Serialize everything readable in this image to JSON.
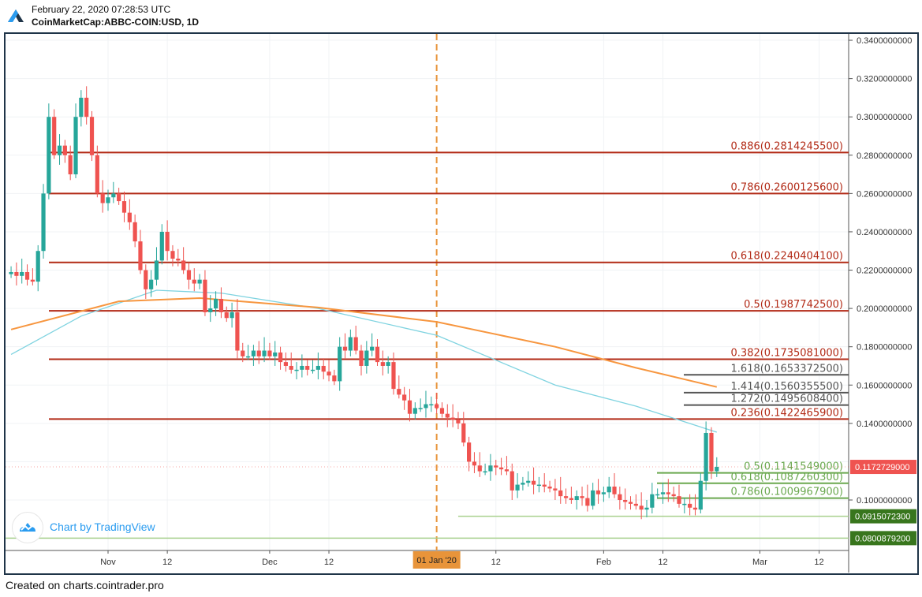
{
  "header": {
    "datetime": "February 22, 2020 07:28:53 UTC",
    "symbol": "CoinMarketCap:ABBC-COIN:USD, 1D"
  },
  "footer": {
    "credit": "Created on charts.cointrader.pro"
  },
  "watermark": {
    "label": "Chart by TradingView"
  },
  "colors": {
    "up": "#26a69a",
    "down": "#ef5350",
    "fib_red": "#b22a16",
    "fib_grey": "#555555",
    "fib_green": "#6aa84f",
    "ma_fast": "#7fd3e0",
    "ma_slow": "#f7963f",
    "event_line": "#e8943a",
    "support_dark_green": "#38761d",
    "frame": "#1f3448"
  },
  "chart_data": {
    "type": "candlestick",
    "interval": "1D",
    "first_candle_date": "2019-10-14",
    "close": [
      0.219,
      0.217,
      0.219,
      0.215,
      0.214,
      0.23,
      0.26,
      0.3,
      0.28,
      0.285,
      0.28,
      0.27,
      0.3,
      0.31,
      0.3,
      0.28,
      0.26,
      0.255,
      0.258,
      0.26,
      0.256,
      0.25,
      0.245,
      0.235,
      0.22,
      0.21,
      0.215,
      0.225,
      0.24,
      0.23,
      0.226,
      0.225,
      0.22,
      0.215,
      0.213,
      0.215,
      0.198,
      0.2,
      0.205,
      0.198,
      0.195,
      0.198,
      0.178,
      0.175,
      0.175,
      0.178,
      0.175,
      0.178,
      0.175,
      0.177,
      0.172,
      0.17,
      0.168,
      0.168,
      0.17,
      0.168,
      0.168,
      0.17,
      0.167,
      0.165,
      0.162,
      0.18,
      0.178,
      0.185,
      0.178,
      0.17,
      0.178,
      0.18,
      0.172,
      0.17,
      0.172,
      0.158,
      0.155,
      0.152,
      0.145,
      0.148,
      0.148,
      0.15,
      0.15,
      0.148,
      0.145,
      0.143,
      0.142,
      0.14,
      0.13,
      0.12,
      0.118,
      0.115,
      0.115,
      0.118,
      0.117,
      0.116,
      0.115,
      0.105,
      0.108,
      0.109,
      0.11,
      0.108,
      0.108,
      0.107,
      0.106,
      0.105,
      0.102,
      0.101,
      0.1,
      0.102,
      0.101,
      0.097,
      0.105,
      0.103,
      0.104,
      0.107,
      0.103,
      0.1,
      0.099,
      0.098,
      0.097,
      0.095,
      0.096,
      0.103,
      0.103,
      0.104,
      0.103,
      0.102,
      0.098,
      0.098,
      0.096,
      0.095,
      0.11,
      0.135,
      0.115,
      0.1173
    ],
    "ma_fast": [
      [
        0,
        0.176
      ],
      [
        13,
        0.196
      ],
      [
        27,
        0.2095
      ],
      [
        39,
        0.208
      ],
      [
        57,
        0.2
      ],
      [
        79,
        0.186
      ],
      [
        101,
        0.16
      ],
      [
        116,
        0.149
      ],
      [
        131,
        0.1354
      ]
    ],
    "ma_slow": [
      [
        0,
        0.189
      ],
      [
        20,
        0.2037
      ],
      [
        35,
        0.2054
      ],
      [
        57,
        0.2005
      ],
      [
        79,
        0.193
      ],
      [
        101,
        0.18
      ],
      [
        116,
        0.169
      ],
      [
        131,
        0.159
      ]
    ],
    "y_axis": {
      "min": 0.075,
      "max": 0.345,
      "ticks": [
        "0.3400000000",
        "0.3200000000",
        "0.3000000000",
        "0.2800000000",
        "0.2600000000",
        "0.2400000000",
        "0.2200000000",
        "0.2000000000",
        "0.1800000000",
        "0.1600000000",
        "0.1400000000",
        "0.1000000000"
      ]
    },
    "x_axis": {
      "ticks": [
        {
          "label": "Nov",
          "day": 18
        },
        {
          "label": "12",
          "day": 29
        },
        {
          "label": "Dec",
          "day": 48
        },
        {
          "label": "12",
          "day": 59
        },
        {
          "label": "12",
          "day": 90
        },
        {
          "label": "Feb",
          "day": 110
        },
        {
          "label": "12",
          "day": 121
        },
        {
          "label": "Mar",
          "day": 139
        },
        {
          "label": "12",
          "day": 150
        }
      ]
    },
    "event_marker": {
      "label": "01 Jan '20",
      "day": 79
    },
    "last_price": {
      "value": 0.1172729,
      "label": "0.1172729000"
    },
    "fib_retracement_red": [
      {
        "ratio": "0.886",
        "price": 0.28142455,
        "label": "0.886(0.2814245500)"
      },
      {
        "ratio": "0.786",
        "price": 0.26001256,
        "label": "0.786(0.2600125600)"
      },
      {
        "ratio": "0.618",
        "price": 0.22404041,
        "label": "0.618(0.2240404100)"
      },
      {
        "ratio": "0.5",
        "price": 0.19877425,
        "label": "0.5(0.1987742500)"
      },
      {
        "ratio": "0.382",
        "price": 0.1735081,
        "label": "0.382(0.1735081000)"
      },
      {
        "ratio": "0.236",
        "price": 0.14224659,
        "label": "0.236(0.1422465900)"
      }
    ],
    "fib_extension_grey": [
      {
        "ratio": "1.618",
        "price": 0.16533725,
        "label": "1.618(0.1653372500)"
      },
      {
        "ratio": "1.414",
        "price": 0.15603555,
        "label": "1.414(0.1560355500)"
      },
      {
        "ratio": "1.272",
        "price": 0.14956084,
        "label": "1.272(0.1495608400)"
      }
    ],
    "fib_retracement_green": [
      {
        "ratio": "0.5",
        "price": 0.1141549,
        "label": "0.5(0.1141549000)"
      },
      {
        "ratio": "0.618",
        "price": 0.10872603,
        "label": "0.618(0.1087260300)"
      },
      {
        "ratio": "0.786",
        "price": 0.10099679,
        "label": "0.786(0.1009967900)"
      }
    ],
    "support_levels": [
      {
        "price": 0.09150723,
        "label": "0.0915072300",
        "start_day": 83
      },
      {
        "price": 0.08008792,
        "label": "0.0800879200",
        "start_day": -1
      }
    ]
  }
}
